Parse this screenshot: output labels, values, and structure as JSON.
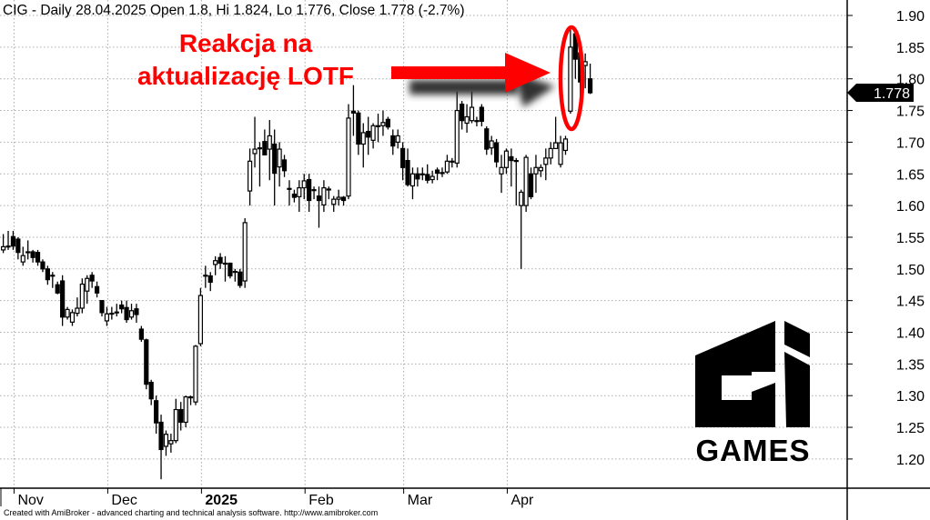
{
  "header": {
    "title": "CIG - Daily 28.04.2025 Open 1.8, Hi 1.824, Lo 1.776, Close 1.778 (-2.7%)"
  },
  "annotation": {
    "line1": "Reakcja na",
    "line2": "aktualizację LOTF",
    "color": "#ff0000"
  },
  "last_price_label": "1.778",
  "logo": {
    "text": "GAMES",
    "brand": "CI Games"
  },
  "footer": "Created with AmiBroker - advanced charting and technical analysis software. http://www.amibroker.com",
  "chart_data": {
    "type": "candlestick",
    "ticker": "CIG",
    "ylim": [
      1.15,
      1.92
    ],
    "yticks": [
      "1.20",
      "1.25",
      "1.30",
      "1.35",
      "1.40",
      "1.45",
      "1.50",
      "1.55",
      "1.60",
      "1.65",
      "1.70",
      "1.75",
      "1.80",
      "1.85",
      "1.90"
    ],
    "xtick_labels": [
      "Nov",
      "Dec",
      "2025",
      "Feb",
      "Mar",
      "Apr"
    ],
    "grid": true,
    "up_color": "#ffffff",
    "down_color": "#000000",
    "dates": [
      "2024-10-30",
      "2024-10-31",
      "2024-11-04",
      "2024-11-05",
      "2024-11-06",
      "2024-11-07",
      "2024-11-08",
      "2024-11-12",
      "2024-11-13",
      "2024-11-14",
      "2024-11-15",
      "2024-11-18",
      "2024-11-19",
      "2024-11-20",
      "2024-11-21",
      "2024-11-22",
      "2024-11-25",
      "2024-11-26",
      "2024-11-27",
      "2024-11-28",
      "2024-11-29",
      "2024-12-02",
      "2024-12-03",
      "2024-12-04",
      "2024-12-05",
      "2024-12-06",
      "2024-12-09",
      "2024-12-10",
      "2024-12-11",
      "2024-12-12",
      "2024-12-13",
      "2024-12-16",
      "2024-12-17",
      "2024-12-18",
      "2024-12-19",
      "2024-12-20",
      "2024-12-23",
      "2024-12-27",
      "2024-12-30",
      "2024-12-31",
      "2025-01-02",
      "2025-01-03",
      "2025-01-07",
      "2025-01-08",
      "2025-01-09",
      "2025-01-10",
      "2025-01-13",
      "2025-01-14",
      "2025-01-15",
      "2025-01-16",
      "2025-01-17",
      "2025-01-20",
      "2025-01-21",
      "2025-01-22",
      "2025-01-23",
      "2025-01-24",
      "2025-01-27",
      "2025-01-28",
      "2025-01-29",
      "2025-01-30",
      "2025-01-31",
      "2025-02-03",
      "2025-02-04",
      "2025-02-05",
      "2025-02-06",
      "2025-02-07",
      "2025-02-10",
      "2025-02-11",
      "2025-02-12",
      "2025-02-13",
      "2025-02-14",
      "2025-02-17",
      "2025-02-18",
      "2025-02-19",
      "2025-02-20",
      "2025-02-21",
      "2025-02-24",
      "2025-02-25",
      "2025-02-26",
      "2025-02-27",
      "2025-02-28",
      "2025-03-03",
      "2025-03-04",
      "2025-03-05",
      "2025-03-06",
      "2025-03-07",
      "2025-03-10",
      "2025-03-11",
      "2025-03-12",
      "2025-03-13",
      "2025-03-14",
      "2025-03-17",
      "2025-03-18",
      "2025-03-19",
      "2025-03-20",
      "2025-03-21",
      "2025-03-24",
      "2025-03-25",
      "2025-03-26",
      "2025-03-27",
      "2025-03-28",
      "2025-03-31",
      "2025-04-01",
      "2025-04-02",
      "2025-04-03",
      "2025-04-04",
      "2025-04-07",
      "2025-04-08",
      "2025-04-09",
      "2025-04-10",
      "2025-04-11",
      "2025-04-14",
      "2025-04-15",
      "2025-04-16",
      "2025-04-17",
      "2025-04-22",
      "2025-04-23",
      "2025-04-24",
      "2025-04-25",
      "2025-04-28"
    ],
    "ohlc": [
      [
        1.53,
        1.555,
        1.525,
        1.535
      ],
      [
        1.535,
        1.56,
        1.53,
        1.536
      ],
      [
        1.551,
        1.56,
        1.53,
        1.536
      ],
      [
        1.547,
        1.55,
        1.515,
        1.526
      ],
      [
        1.511,
        1.535,
        1.505,
        1.521
      ],
      [
        1.527,
        1.545,
        1.515,
        1.527
      ],
      [
        1.527,
        1.53,
        1.51,
        1.518
      ],
      [
        1.526,
        1.53,
        1.505,
        1.511
      ],
      [
        1.511,
        1.515,
        1.495,
        1.5
      ],
      [
        1.5,
        1.505,
        1.475,
        1.483
      ],
      [
        1.49,
        1.495,
        1.47,
        1.49
      ],
      [
        1.475,
        1.48,
        1.46,
        1.462
      ],
      [
        1.481,
        1.49,
        1.41,
        1.424
      ],
      [
        1.424,
        1.44,
        1.42,
        1.436
      ],
      [
        1.416,
        1.436,
        1.41,
        1.431
      ],
      [
        1.43,
        1.455,
        1.425,
        1.438
      ],
      [
        1.438,
        1.485,
        1.43,
        1.476
      ],
      [
        1.465,
        1.49,
        1.445,
        1.485
      ],
      [
        1.49,
        1.495,
        1.47,
        1.481
      ],
      [
        1.472,
        1.48,
        1.455,
        1.462
      ],
      [
        1.45,
        1.45,
        1.425,
        1.431
      ],
      [
        1.418,
        1.44,
        1.41,
        1.429
      ],
      [
        1.43,
        1.44,
        1.42,
        1.43
      ],
      [
        1.432,
        1.445,
        1.425,
        1.432
      ],
      [
        1.443,
        1.45,
        1.43,
        1.437
      ],
      [
        1.439,
        1.45,
        1.415,
        1.42
      ],
      [
        1.424,
        1.445,
        1.42,
        1.434
      ],
      [
        1.437,
        1.445,
        1.415,
        1.428
      ],
      [
        1.405,
        1.41,
        1.385,
        1.389
      ],
      [
        1.388,
        1.39,
        1.31,
        1.318
      ],
      [
        1.321,
        1.325,
        1.285,
        1.295
      ],
      [
        1.292,
        1.3,
        1.24,
        1.257
      ],
      [
        1.258,
        1.27,
        1.168,
        1.215
      ],
      [
        1.22,
        1.245,
        1.205,
        1.239
      ],
      [
        1.224,
        1.24,
        1.21,
        1.229
      ],
      [
        1.229,
        1.295,
        1.225,
        1.278
      ],
      [
        1.278,
        1.29,
        1.245,
        1.258
      ],
      [
        1.258,
        1.3,
        1.25,
        1.298
      ],
      [
        1.298,
        1.3,
        1.285,
        1.298
      ],
      [
        1.29,
        1.38,
        1.285,
        1.378
      ],
      [
        1.382,
        1.47,
        1.378,
        1.458
      ],
      [
        1.49,
        1.505,
        1.47,
        1.49
      ],
      [
        1.489,
        1.495,
        1.465,
        1.479
      ],
      [
        1.507,
        1.52,
        1.49,
        1.513
      ],
      [
        1.518,
        1.525,
        1.5,
        1.509
      ],
      [
        1.509,
        1.52,
        1.48,
        1.509
      ],
      [
        1.509,
        1.51,
        1.485,
        1.489
      ],
      [
        1.496,
        1.5,
        1.48,
        1.496
      ],
      [
        1.495,
        1.5,
        1.47,
        1.474
      ],
      [
        1.481,
        1.58,
        1.47,
        1.573
      ],
      [
        1.623,
        1.69,
        1.6,
        1.67
      ],
      [
        1.682,
        1.74,
        1.66,
        1.689
      ],
      [
        1.691,
        1.7,
        1.63,
        1.691
      ],
      [
        1.701,
        1.72,
        1.68,
        1.68
      ],
      [
        1.689,
        1.735,
        1.64,
        1.71
      ],
      [
        1.697,
        1.72,
        1.6,
        1.651
      ],
      [
        1.661,
        1.7,
        1.63,
        1.689
      ],
      [
        1.672,
        1.68,
        1.645,
        1.655
      ],
      [
        1.627,
        1.64,
        1.6,
        1.627
      ],
      [
        1.618,
        1.625,
        1.605,
        1.613
      ],
      [
        1.614,
        1.64,
        1.59,
        1.628
      ],
      [
        1.628,
        1.65,
        1.61,
        1.639
      ],
      [
        1.641,
        1.65,
        1.59,
        1.608
      ],
      [
        1.625,
        1.63,
        1.61,
        1.625
      ],
      [
        1.615,
        1.63,
        1.565,
        1.608
      ],
      [
        1.601,
        1.64,
        1.59,
        1.628
      ],
      [
        1.626,
        1.63,
        1.61,
        1.626
      ],
      [
        1.602,
        1.615,
        1.59,
        1.61
      ],
      [
        1.61,
        1.625,
        1.6,
        1.613
      ],
      [
        1.613,
        1.615,
        1.6,
        1.608
      ],
      [
        1.615,
        1.76,
        1.61,
        1.738
      ],
      [
        1.749,
        1.79,
        1.71,
        1.746
      ],
      [
        1.746,
        1.75,
        1.68,
        1.697
      ],
      [
        1.697,
        1.73,
        1.66,
        1.715
      ],
      [
        1.717,
        1.74,
        1.68,
        1.708
      ],
      [
        1.703,
        1.73,
        1.69,
        1.726
      ],
      [
        1.726,
        1.745,
        1.7,
        1.726
      ],
      [
        1.726,
        1.75,
        1.71,
        1.731
      ],
      [
        1.736,
        1.74,
        1.72,
        1.724
      ],
      [
        1.71,
        1.72,
        1.68,
        1.694
      ],
      [
        1.7,
        1.72,
        1.69,
        1.71
      ],
      [
        1.69,
        1.7,
        1.64,
        1.66
      ],
      [
        1.671,
        1.69,
        1.63,
        1.633
      ],
      [
        1.631,
        1.66,
        1.61,
        1.65
      ],
      [
        1.65,
        1.66,
        1.63,
        1.642
      ],
      [
        1.65,
        1.66,
        1.64,
        1.65
      ],
      [
        1.649,
        1.665,
        1.635,
        1.64
      ],
      [
        1.641,
        1.655,
        1.635,
        1.646
      ],
      [
        1.656,
        1.66,
        1.64,
        1.651
      ],
      [
        1.652,
        1.66,
        1.645,
        1.652
      ],
      [
        1.653,
        1.68,
        1.65,
        1.67
      ],
      [
        1.67,
        1.675,
        1.66,
        1.67
      ],
      [
        1.667,
        1.78,
        1.66,
        1.75
      ],
      [
        1.76,
        1.765,
        1.72,
        1.734
      ],
      [
        1.73,
        1.76,
        1.715,
        1.74
      ],
      [
        1.734,
        1.78,
        1.73,
        1.755
      ],
      [
        1.734,
        1.74,
        1.725,
        1.734
      ],
      [
        1.755,
        1.76,
        1.725,
        1.733
      ],
      [
        1.721,
        1.725,
        1.68,
        1.689
      ],
      [
        1.691,
        1.71,
        1.68,
        1.702
      ],
      [
        1.699,
        1.705,
        1.66,
        1.669
      ],
      [
        1.65,
        1.68,
        1.62,
        1.66
      ],
      [
        1.66,
        1.69,
        1.65,
        1.686
      ],
      [
        1.677,
        1.69,
        1.63,
        1.671
      ],
      [
        1.671,
        1.675,
        1.6,
        1.671
      ],
      [
        1.6,
        1.625,
        1.5,
        1.621
      ],
      [
        1.6,
        1.68,
        1.59,
        1.676
      ],
      [
        1.65,
        1.66,
        1.61,
        1.614
      ],
      [
        1.65,
        1.68,
        1.62,
        1.66
      ],
      [
        1.655,
        1.665,
        1.645,
        1.66
      ],
      [
        1.665,
        1.69,
        1.64,
        1.675
      ],
      [
        1.675,
        1.7,
        1.665,
        1.69
      ],
      [
        1.69,
        1.74,
        1.69,
        1.699
      ],
      [
        1.665,
        1.71,
        1.66,
        1.699
      ],
      [
        1.687,
        1.71,
        1.68,
        1.705
      ],
      [
        1.749,
        1.88,
        1.745,
        1.85
      ],
      [
        1.871,
        1.875,
        1.8,
        1.831
      ],
      [
        1.841,
        1.845,
        1.77,
        1.795
      ],
      [
        1.821,
        1.84,
        1.785,
        1.827
      ],
      [
        1.8,
        1.824,
        1.776,
        1.778
      ]
    ]
  }
}
